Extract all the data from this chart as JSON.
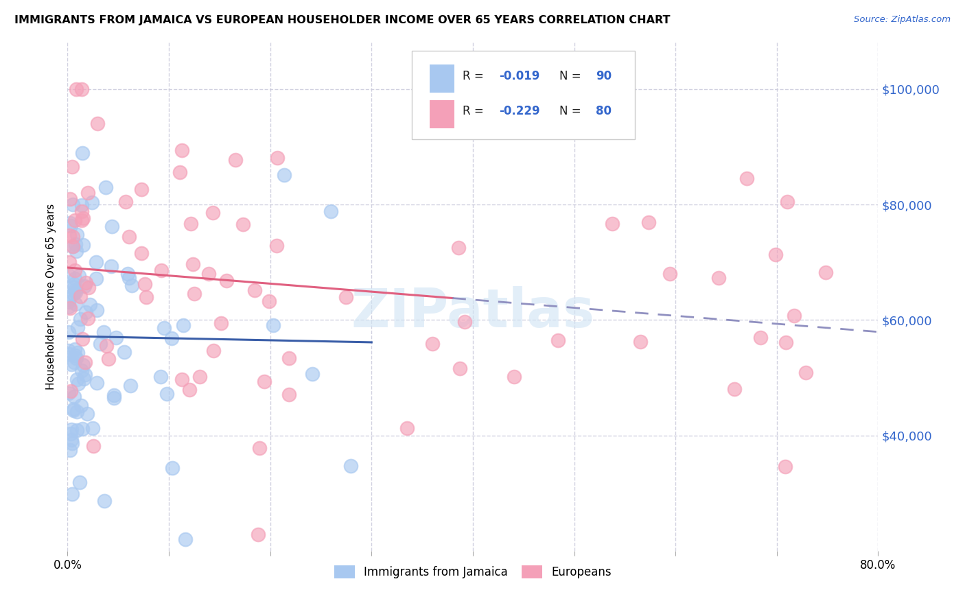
{
  "title": "IMMIGRANTS FROM JAMAICA VS EUROPEAN HOUSEHOLDER INCOME OVER 65 YEARS CORRELATION CHART",
  "source": "Source: ZipAtlas.com",
  "ylabel": "Householder Income Over 65 years",
  "xlim": [
    0.0,
    0.8
  ],
  "ylim": [
    20000,
    108000
  ],
  "yticks": [
    40000,
    60000,
    80000,
    100000
  ],
  "ytick_labels": [
    "$40,000",
    "$60,000",
    "$80,000",
    "$100,000"
  ],
  "r_jamaica": -0.019,
  "n_jamaica": 90,
  "r_european": -0.229,
  "n_european": 80,
  "color_jamaica": "#a8c8f0",
  "color_european": "#f4a0b8",
  "trendline_jamaica_color": "#3a5ea8",
  "trendline_european_color": "#e06080",
  "trendline_dashed_color": "#9090c0",
  "watermark": "ZIPatlas",
  "background_color": "#ffffff"
}
